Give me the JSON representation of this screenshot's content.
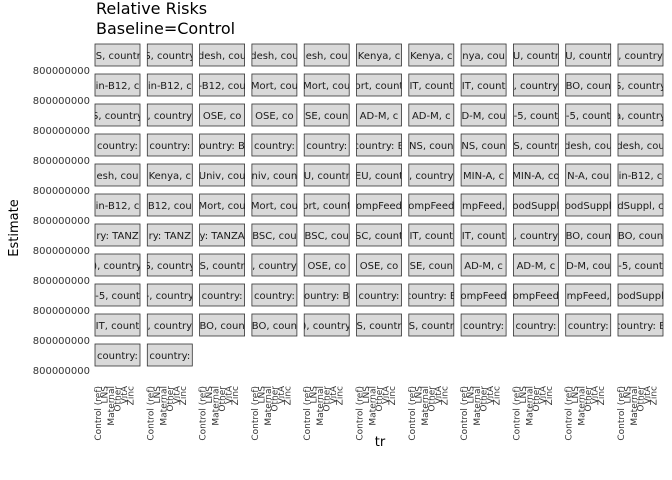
{
  "chart_data": {
    "type": "scatter",
    "title": "Relative Risks",
    "subtitle": "Baseline=Control",
    "xlabel": "tr",
    "ylabel": "Estimate",
    "y_tick_labels": [
      "800000000",
      "800000000",
      "800000000",
      "800000000",
      "800000000",
      "800000000",
      "800000000",
      "800000000",
      "800000000",
      "800000000",
      "800000000"
    ],
    "x_tick_labels": [
      "Control (ref)",
      "LNS",
      "Maternal",
      "Other",
      "VitA",
      "Zinc"
    ],
    "panel_columns": 11,
    "panel_rows": 11,
    "strip_labels": [
      [
        "NS, country",
        "S, country",
        "desh, cou",
        "desh, cou",
        "esh, cou",
        "Kenya, c",
        "Kenya, c",
        "nya, cou",
        "U, countr",
        "U, countr",
        ", country"
      ],
      [
        "in-B12, c",
        "in-B12, c",
        "-B12, cou",
        "Mort, cou",
        "Mort, cou",
        "ort, count",
        "IT, count",
        "IT, count",
        ", country",
        "BO, coun",
        "S, country"
      ],
      [
        "S, country",
        ", country",
        "OSE, co",
        "OSE, co",
        "SE, coun",
        "AD-M, c",
        "AD-M, c",
        "D-M, cou",
        "-5, count",
        "-5, count",
        "a, country"
      ],
      [
        "country:",
        "country:",
        "ountry: B",
        "country:",
        "country:",
        "country: B",
        "NS, coun",
        "NS, coun",
        "S, countr",
        "desh, cou",
        "desh, cou"
      ],
      [
        "esh, cou",
        "Kenya, c",
        "Univ, cou",
        "niv, coun",
        "U, countr",
        "EU, count",
        ", country",
        "MIN-A, c",
        "MIN-A, co",
        "N-A, cou",
        "in-B12, c"
      ],
      [
        "in-B12, c",
        "B12, cou",
        "Mort, cou",
        "Mort, cou",
        "ort, count",
        "ompFeed",
        "ompFeed",
        "mpFeed,",
        "oodSuppl",
        "oodSuppl",
        "dSuppl, c"
      ],
      [
        "ry: TANZ",
        "ry: TANZ",
        "y: TANZA",
        "BSC, cou",
        "BSC, cou",
        "SC, count",
        "IT, count",
        "IT, count",
        ", country",
        "BO, coun",
        "BO, coun"
      ],
      [
        "), country",
        "S, country",
        "S, countr",
        ", country",
        "OSE, co",
        "OSE, co",
        "SE, coun",
        "AD-M, c",
        "AD-M, c",
        "D-M, cou",
        "-5, count"
      ],
      [
        "-5, count",
        "-, country",
        "country:",
        "country:",
        "ountry: B",
        "country:",
        "country: B",
        "ompFeed",
        "ompFeed",
        "mpFeed,",
        "oodSuppl"
      ],
      [
        "IT, count",
        ", country",
        "BO, coun",
        "BO, coun",
        "), country",
        "S, countr",
        "S, countr",
        "country:",
        "country:",
        "country:",
        "country: B"
      ],
      [
        "country:",
        "country:",
        "",
        "",
        "",
        "",
        "",
        "",
        "",
        "",
        ""
      ]
    ],
    "series": []
  }
}
